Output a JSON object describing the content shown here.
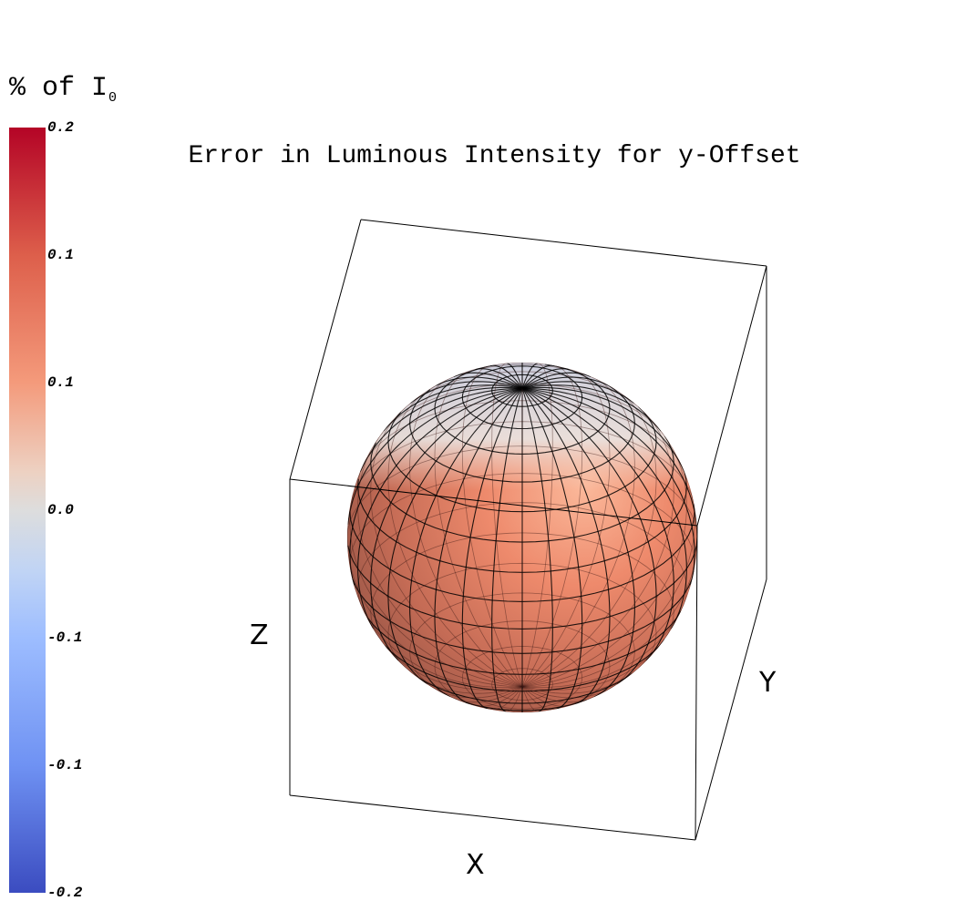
{
  "colorbar": {
    "title_text": "% of I",
    "title_sub": "0",
    "ticks": [
      "0.2",
      "0.1",
      "0.1",
      "0.0",
      "-0.1",
      "-0.1",
      "-0.2"
    ]
  },
  "chart_data": {
    "type": "3d-surface",
    "title": "Error in Luminous Intensity for y-Offset",
    "xlabel": "X",
    "ylabel": "Y",
    "zlabel": "Z",
    "surface": "sphere",
    "colormap": "coolwarm",
    "colorbar_label": "% of I0",
    "colorbar_range": [
      -0.2,
      0.2
    ],
    "colorbar_ticks": [
      "0.2",
      "0.1",
      "0.1",
      "0.0",
      "-0.1",
      "-0.1",
      "-0.2"
    ],
    "colors": {
      "max": "#b40426",
      "mid": "#dddddd",
      "min": "#3b4cc0"
    }
  }
}
